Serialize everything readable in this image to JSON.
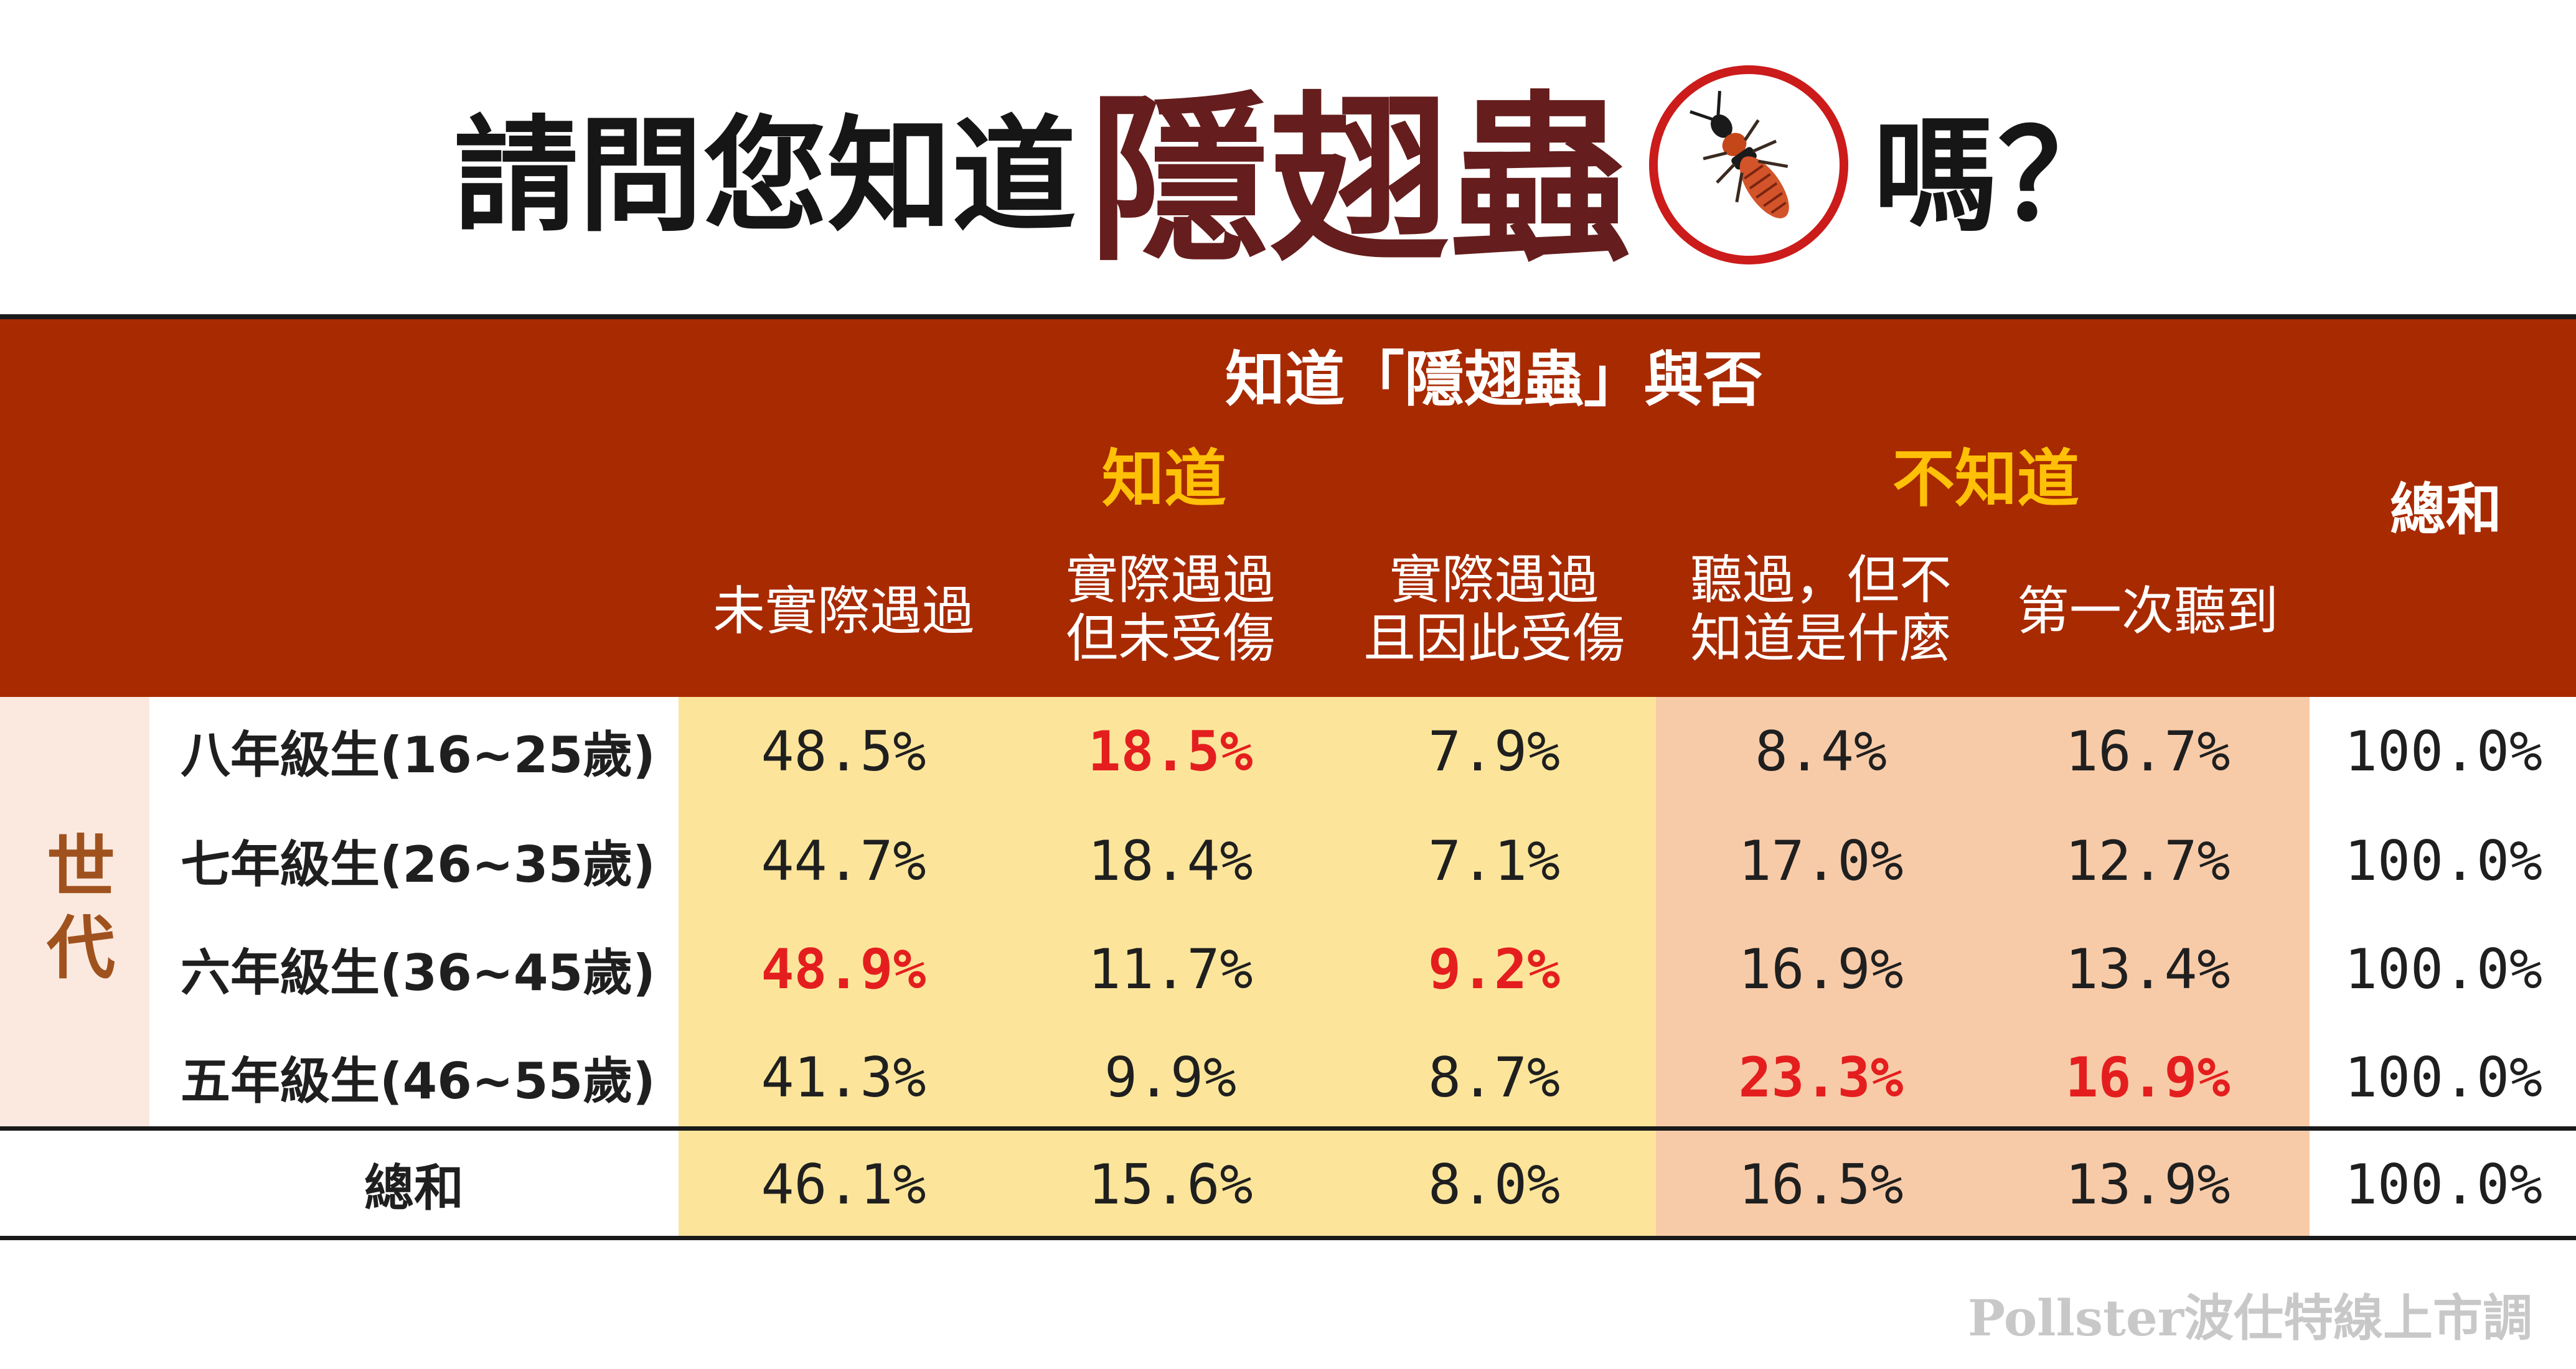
{
  "title": {
    "part1": "請問您知道",
    "part2": "隱翅蟲",
    "part3": "嗎？",
    "bug_icon": "rove-beetle-icon"
  },
  "header": {
    "main": "知道「隱翅蟲」與否",
    "group_know": "知道",
    "group_unknown": "不知道",
    "total": "總和",
    "columns": [
      "未實際遇過",
      "實際遇過\n但未受傷",
      "實際遇過\n且因此受傷",
      "聽過，但不\n知道是什麼",
      "第一次聽到"
    ]
  },
  "row_group_label": "世代",
  "colors": {
    "header_bg": "#a82a00",
    "header_gold": "#ffc107",
    "know_band": "#fce59a",
    "unknown_band": "#f8cba8",
    "generation_band": "#fbe9df",
    "generation_text": "#a0521e",
    "highlight": "#e41e1e"
  },
  "chart_data": {
    "type": "table",
    "title": "請問您知道隱翅蟲嗎？",
    "columns": [
      "未實際遇過",
      "實際遇過但未受傷",
      "實際遇過且因此受傷",
      "聽過，但不知道是什麼",
      "第一次聽到",
      "總和"
    ],
    "rows": [
      {
        "label": "八年級生(16~25歲)",
        "values": [
          "48.5%",
          "18.5%",
          "7.9%",
          "8.4%",
          "16.7%",
          "100.0%"
        ],
        "highlight": [
          1
        ]
      },
      {
        "label": "七年級生(26~35歲)",
        "values": [
          "44.7%",
          "18.4%",
          "7.1%",
          "17.0%",
          "12.7%",
          "100.0%"
        ],
        "highlight": []
      },
      {
        "label": "六年級生(36~45歲)",
        "values": [
          "48.9%",
          "11.7%",
          "9.2%",
          "16.9%",
          "13.4%",
          "100.0%"
        ],
        "highlight": [
          0,
          2
        ]
      },
      {
        "label": "五年級生(46~55歲)",
        "values": [
          "41.3%",
          "9.9%",
          "8.7%",
          "23.3%",
          "16.9%",
          "100.0%"
        ],
        "highlight": [
          3,
          4
        ]
      },
      {
        "label": "總和",
        "values": [
          "46.1%",
          "15.6%",
          "8.0%",
          "16.5%",
          "13.9%",
          "100.0%"
        ],
        "highlight": []
      }
    ]
  },
  "watermark": "Pollster波仕特線上市調"
}
